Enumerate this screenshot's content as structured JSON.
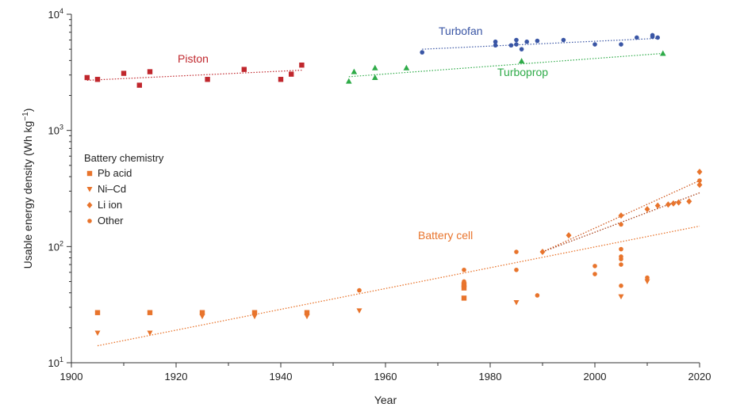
{
  "chart_data": {
    "type": "scatter",
    "xlabel": "Year",
    "ylabel_main": "Usable energy density (Wh kg",
    "ylabel_sup": "−1",
    "ylabel_end": ")",
    "xlim": [
      1900,
      2020
    ],
    "ylim": [
      10,
      10000
    ],
    "yscale": "log",
    "xticks": [
      1900,
      1920,
      1940,
      1960,
      1980,
      2000,
      2020
    ],
    "yticks": [
      {
        "value": 10,
        "base": "10",
        "exp": "1"
      },
      {
        "value": 100,
        "base": "10",
        "exp": "2"
      },
      {
        "value": 1000,
        "base": "10",
        "exp": "3"
      },
      {
        "value": 10000,
        "base": "10",
        "exp": "4"
      }
    ],
    "legend": {
      "title": "Battery chemistry",
      "placement": "left-middle",
      "items": [
        {
          "label": "Pb acid",
          "marker": "square"
        },
        {
          "label": "Ni–Cd",
          "marker": "triangle-down"
        },
        {
          "label": "Li ion",
          "marker": "diamond"
        },
        {
          "label": "Other",
          "marker": "circle"
        }
      ]
    },
    "series": [
      {
        "name": "Piston",
        "color": "#c0272d",
        "marker": "square",
        "points": [
          [
            1903,
            2850
          ],
          [
            1905,
            2750
          ],
          [
            1910,
            3100
          ],
          [
            1913,
            2450
          ],
          [
            1915,
            3200
          ],
          [
            1926,
            2750
          ],
          [
            1933,
            3350
          ],
          [
            1940,
            2750
          ],
          [
            1942,
            3050
          ],
          [
            1944,
            3650
          ]
        ],
        "trend": [
          [
            1903,
            2700
          ],
          [
            1944,
            3300
          ]
        ]
      },
      {
        "name": "Turbofan",
        "color": "#3a56a5",
        "marker": "circle",
        "points": [
          [
            1967,
            4700
          ],
          [
            1981,
            5800
          ],
          [
            1981,
            5400
          ],
          [
            1984,
            5400
          ],
          [
            1985,
            6000
          ],
          [
            1985,
            5500
          ],
          [
            1986,
            5000
          ],
          [
            1987,
            5800
          ],
          [
            1989,
            5900
          ],
          [
            1994,
            6000
          ],
          [
            2000,
            5500
          ],
          [
            2005,
            5500
          ],
          [
            2008,
            6300
          ],
          [
            2011,
            6600
          ],
          [
            2011,
            6400
          ],
          [
            2012,
            6300
          ]
        ],
        "trend": [
          [
            1967,
            5000
          ],
          [
            2012,
            6200
          ]
        ]
      },
      {
        "name": "Turboprop",
        "color": "#2eab48",
        "marker": "triangle-up",
        "points": [
          [
            1953,
            2650
          ],
          [
            1954,
            3200
          ],
          [
            1958,
            3450
          ],
          [
            1958,
            2850
          ],
          [
            1964,
            3450
          ],
          [
            1986,
            3950
          ],
          [
            2013,
            4600
          ]
        ],
        "trend": [
          [
            1953,
            2900
          ],
          [
            2013,
            4600
          ]
        ]
      },
      {
        "name": "Battery cell",
        "color": "#e8742c",
        "points": [
          {
            "x": 1905,
            "y": 27,
            "m": "square"
          },
          {
            "x": 1905,
            "y": 18,
            "m": "triangle-down"
          },
          {
            "x": 1915,
            "y": 27,
            "m": "square"
          },
          {
            "x": 1915,
            "y": 18,
            "m": "triangle-down"
          },
          {
            "x": 1925,
            "y": 27,
            "m": "square"
          },
          {
            "x": 1925,
            "y": 25,
            "m": "triangle-down"
          },
          {
            "x": 1935,
            "y": 27,
            "m": "square"
          },
          {
            "x": 1935,
            "y": 25,
            "m": "triangle-down"
          },
          {
            "x": 1945,
            "y": 27,
            "m": "square"
          },
          {
            "x": 1945,
            "y": 25,
            "m": "triangle-down"
          },
          {
            "x": 1955,
            "y": 42,
            "m": "circle"
          },
          {
            "x": 1955,
            "y": 28,
            "m": "triangle-down"
          },
          {
            "x": 1975,
            "y": 63,
            "m": "circle"
          },
          {
            "x": 1975,
            "y": 50,
            "m": "circle"
          },
          {
            "x": 1975,
            "y": 47,
            "m": "square"
          },
          {
            "x": 1975,
            "y": 44,
            "m": "square"
          },
          {
            "x": 1975,
            "y": 36,
            "m": "square"
          },
          {
            "x": 1985,
            "y": 90,
            "m": "circle"
          },
          {
            "x": 1985,
            "y": 63,
            "m": "circle"
          },
          {
            "x": 1985,
            "y": 33,
            "m": "triangle-down"
          },
          {
            "x": 1989,
            "y": 38,
            "m": "circle"
          },
          {
            "x": 1990,
            "y": 90,
            "m": "diamond"
          },
          {
            "x": 1995,
            "y": 125,
            "m": "diamond"
          },
          {
            "x": 2000,
            "y": 68,
            "m": "circle"
          },
          {
            "x": 2000,
            "y": 58,
            "m": "circle"
          },
          {
            "x": 2005,
            "y": 185,
            "m": "diamond"
          },
          {
            "x": 2005,
            "y": 155,
            "m": "circle"
          },
          {
            "x": 2005,
            "y": 95,
            "m": "circle"
          },
          {
            "x": 2005,
            "y": 82,
            "m": "circle"
          },
          {
            "x": 2005,
            "y": 78,
            "m": "circle"
          },
          {
            "x": 2005,
            "y": 70,
            "m": "circle"
          },
          {
            "x": 2005,
            "y": 46,
            "m": "circle"
          },
          {
            "x": 2005,
            "y": 37,
            "m": "triangle-down"
          },
          {
            "x": 2010,
            "y": 210,
            "m": "diamond"
          },
          {
            "x": 2010,
            "y": 54,
            "m": "circle"
          },
          {
            "x": 2010,
            "y": 50,
            "m": "triangle-down"
          },
          {
            "x": 2012,
            "y": 225,
            "m": "diamond"
          },
          {
            "x": 2014,
            "y": 230,
            "m": "diamond"
          },
          {
            "x": 2015,
            "y": 235,
            "m": "diamond"
          },
          {
            "x": 2016,
            "y": 240,
            "m": "diamond"
          },
          {
            "x": 2018,
            "y": 245,
            "m": "diamond"
          },
          {
            "x": 2020,
            "y": 440,
            "m": "diamond"
          },
          {
            "x": 2020,
            "y": 370,
            "m": "circle"
          },
          {
            "x": 2020,
            "y": 340,
            "m": "diamond"
          }
        ],
        "trends": [
          {
            "from": [
              1905,
              14
            ],
            "to": [
              2020,
              150
            ],
            "color": "#e8742c"
          },
          {
            "from": [
              1990,
              90
            ],
            "to": [
              2020,
              370
            ],
            "color": "#d05a20"
          },
          {
            "from": [
              1990,
              90
            ],
            "to": [
              2020,
              290
            ],
            "color": "#a8401a"
          }
        ]
      }
    ]
  }
}
